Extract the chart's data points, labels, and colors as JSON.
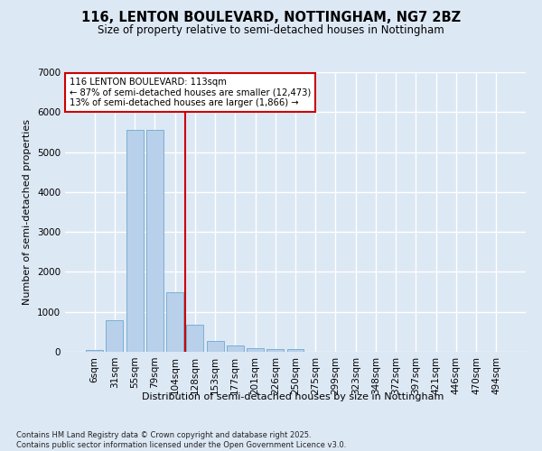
{
  "title": "116, LENTON BOULEVARD, NOTTINGHAM, NG7 2BZ",
  "subtitle": "Size of property relative to semi-detached houses in Nottingham",
  "xlabel": "Distribution of semi-detached houses by size in Nottingham",
  "ylabel": "Number of semi-detached properties",
  "categories": [
    "6sqm",
    "31sqm",
    "55sqm",
    "79sqm",
    "104sqm",
    "128sqm",
    "153sqm",
    "177sqm",
    "201sqm",
    "226sqm",
    "250sqm",
    "275sqm",
    "299sqm",
    "323sqm",
    "348sqm",
    "372sqm",
    "397sqm",
    "421sqm",
    "446sqm",
    "470sqm",
    "494sqm"
  ],
  "values": [
    50,
    800,
    5550,
    5550,
    1500,
    680,
    280,
    160,
    100,
    65,
    65,
    0,
    0,
    0,
    0,
    0,
    0,
    0,
    0,
    0,
    0
  ],
  "bar_color": "#b8d0ea",
  "bar_edge_color": "#7aafd4",
  "background_color": "#dde8f5",
  "grid_color": "#ffffff",
  "vline_x": 4.5,
  "vline_color": "#cc0000",
  "annotation_title": "116 LENTON BOULEVARD: 113sqm",
  "annotation_line1": "← 87% of semi-detached houses are smaller (12,473)",
  "annotation_line2": "13% of semi-detached houses are larger (1,866) →",
  "annotation_box_color": "#cc0000",
  "ylim": [
    0,
    7000
  ],
  "yticks": [
    0,
    1000,
    2000,
    3000,
    4000,
    5000,
    6000,
    7000
  ],
  "footer_line1": "Contains HM Land Registry data © Crown copyright and database right 2025.",
  "footer_line2": "Contains public sector information licensed under the Open Government Licence v3.0."
}
